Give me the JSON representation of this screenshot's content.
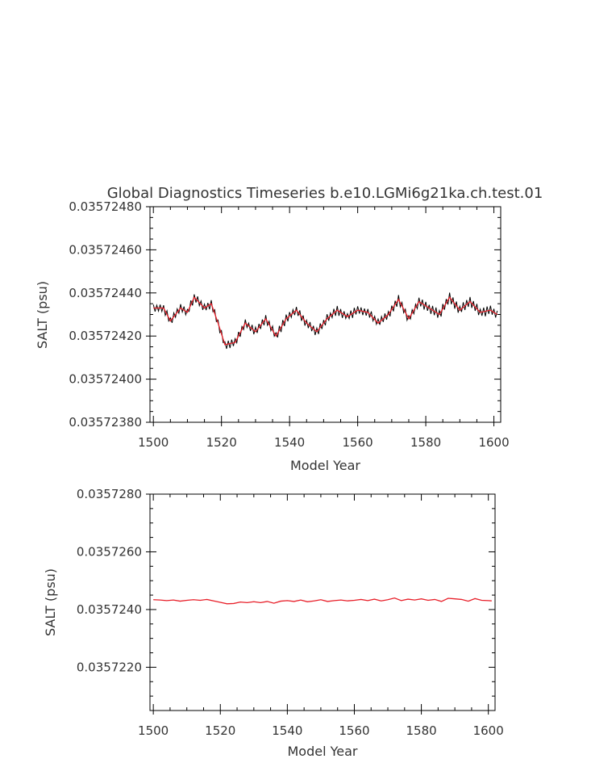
{
  "title": "Global Diagnostics Timeseries b.e10.LGMi6g21ka.ch.test.01",
  "colors": {
    "raw": "#000000",
    "smoothed": "#e8202a",
    "text": "#333333"
  },
  "chart_data": [
    {
      "type": "line",
      "title": "Global Diagnostics Timeseries b.e10.LGMi6g21ka.ch.test.01",
      "xlabel": "Model Year",
      "ylabel": "SALT (psu)",
      "xlim": [
        1499,
        1602
      ],
      "ylim": [
        0.0357238,
        0.0357248
      ],
      "x_ticks": [
        1500,
        1520,
        1540,
        1560,
        1580,
        1600
      ],
      "x_tick_labels": [
        "1500",
        "1520",
        "1540",
        "1560",
        "1580",
        "1600"
      ],
      "y_ticks": [
        0.0357238,
        0.035724,
        0.0357242,
        0.0357244,
        0.0357246,
        0.0357248
      ],
      "y_tick_labels": [
        "0.03572380",
        "0.03572400",
        "0.03572420",
        "0.03572440",
        "0.03572460",
        "0.03572480"
      ],
      "grid": false,
      "series": [
        {
          "kind": "raw",
          "color": "#000000",
          "samples_per_year": 2,
          "x_start": 1500,
          "x_end": 1601,
          "amplitude": [
            1500,
            1.6e-08,
            1520,
            1.7e-08,
            1560,
            1.8e-08,
            1601,
            1.9e-08
          ]
        },
        {
          "kind": "smoothed",
          "color": "#e8202a",
          "x": [
            1500,
            1503,
            1505,
            1508,
            1510,
            1512,
            1515,
            1517,
            1519,
            1521,
            1524,
            1527,
            1530,
            1533,
            1536,
            1539,
            1542,
            1545,
            1548,
            1551,
            1554,
            1557,
            1560,
            1563,
            1566,
            1569,
            1572,
            1575,
            1578,
            1581,
            1584,
            1587,
            1590,
            1593,
            1596,
            1599,
            1601
          ],
          "y": [
            0.03572433,
            0.03572433,
            0.03572427,
            0.03572433,
            0.03572431,
            0.03572438,
            0.03572433,
            0.03572435,
            0.03572426,
            0.03572416,
            0.03572417,
            0.03572426,
            0.03572422,
            0.03572428,
            0.0357242,
            0.03572428,
            0.03572432,
            0.03572426,
            0.03572422,
            0.03572428,
            0.03572432,
            0.03572429,
            0.03572432,
            0.03572431,
            0.03572426,
            0.0357243,
            0.03572437,
            0.03572428,
            0.03572436,
            0.03572433,
            0.0357243,
            0.03572438,
            0.03572432,
            0.03572436,
            0.03572431,
            0.03572432,
            0.0357243
          ]
        }
      ]
    },
    {
      "type": "line",
      "xlabel": "Model Year",
      "ylabel": "SALT (psu)",
      "xlim": [
        1499,
        1602
      ],
      "ylim": [
        0.0357205,
        0.035728
      ],
      "x_ticks": [
        1500,
        1520,
        1540,
        1560,
        1580,
        1600
      ],
      "x_tick_labels": [
        "1500",
        "1520",
        "1540",
        "1560",
        "1580",
        "1600"
      ],
      "y_ticks": [
        0.035722,
        0.035724,
        0.035726,
        0.035728
      ],
      "y_tick_labels": [
        "0.0357220",
        "0.0357240",
        "0.0357260",
        "0.0357280"
      ],
      "grid": false,
      "series": [
        {
          "kind": "smoothed",
          "color": "#e8202a",
          "x": [
            1500,
            1502,
            1504,
            1506,
            1508,
            1510,
            1512,
            1514,
            1516,
            1518,
            1520,
            1522,
            1524,
            1526,
            1528,
            1530,
            1532,
            1534,
            1536,
            1538,
            1540,
            1542,
            1544,
            1546,
            1548,
            1550,
            1552,
            1554,
            1556,
            1558,
            1560,
            1562,
            1564,
            1566,
            1568,
            1570,
            1572,
            1574,
            1576,
            1578,
            1580,
            1582,
            1584,
            1586,
            1588,
            1590,
            1592,
            1594,
            1596,
            1598,
            1600,
            1601
          ],
          "y": [
            0.03572434,
            0.03572433,
            0.03572431,
            0.03572433,
            0.03572429,
            0.03572432,
            0.03572434,
            0.03572432,
            0.03572435,
            0.0357243,
            0.03572425,
            0.0357242,
            0.03572421,
            0.03572426,
            0.03572424,
            0.03572427,
            0.03572424,
            0.03572428,
            0.03572422,
            0.03572429,
            0.03572431,
            0.03572428,
            0.03572433,
            0.03572427,
            0.0357243,
            0.03572434,
            0.03572428,
            0.03572431,
            0.03572433,
            0.0357243,
            0.03572432,
            0.03572435,
            0.03572431,
            0.03572436,
            0.0357243,
            0.03572434,
            0.0357244,
            0.03572431,
            0.03572436,
            0.03572433,
            0.03572437,
            0.03572432,
            0.03572435,
            0.03572428,
            0.03572439,
            0.03572437,
            0.03572435,
            0.03572429,
            0.03572438,
            0.03572432,
            0.03572431,
            0.0357243
          ]
        }
      ]
    }
  ]
}
